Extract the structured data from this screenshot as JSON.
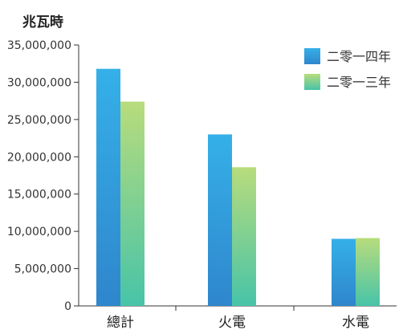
{
  "chart_data": {
    "type": "bar",
    "unit_label": "兆瓦時",
    "categories": [
      "總計",
      "火電",
      "水電"
    ],
    "series": [
      {
        "name": "二零一四年",
        "values": [
          31800000,
          23000000,
          9000000
        ]
      },
      {
        "name": "二零一三年",
        "values": [
          27400000,
          18600000,
          9100000
        ]
      }
    ],
    "ylim": [
      0,
      35000000
    ],
    "yticks": [
      "0",
      "5,000,000",
      "10,000,000",
      "15,000,000",
      "20,000,000",
      "25,000,000",
      "30,000,000",
      "35,000,000"
    ],
    "legend_position": "top-right",
    "grid": false,
    "colors": {
      "series_2014_top": "#35b0e8",
      "series_2014_bottom": "#2f86cc",
      "series_2013_top": "#b8dc7c",
      "series_2013_bottom": "#47c4a8",
      "axis": "#333333"
    }
  }
}
